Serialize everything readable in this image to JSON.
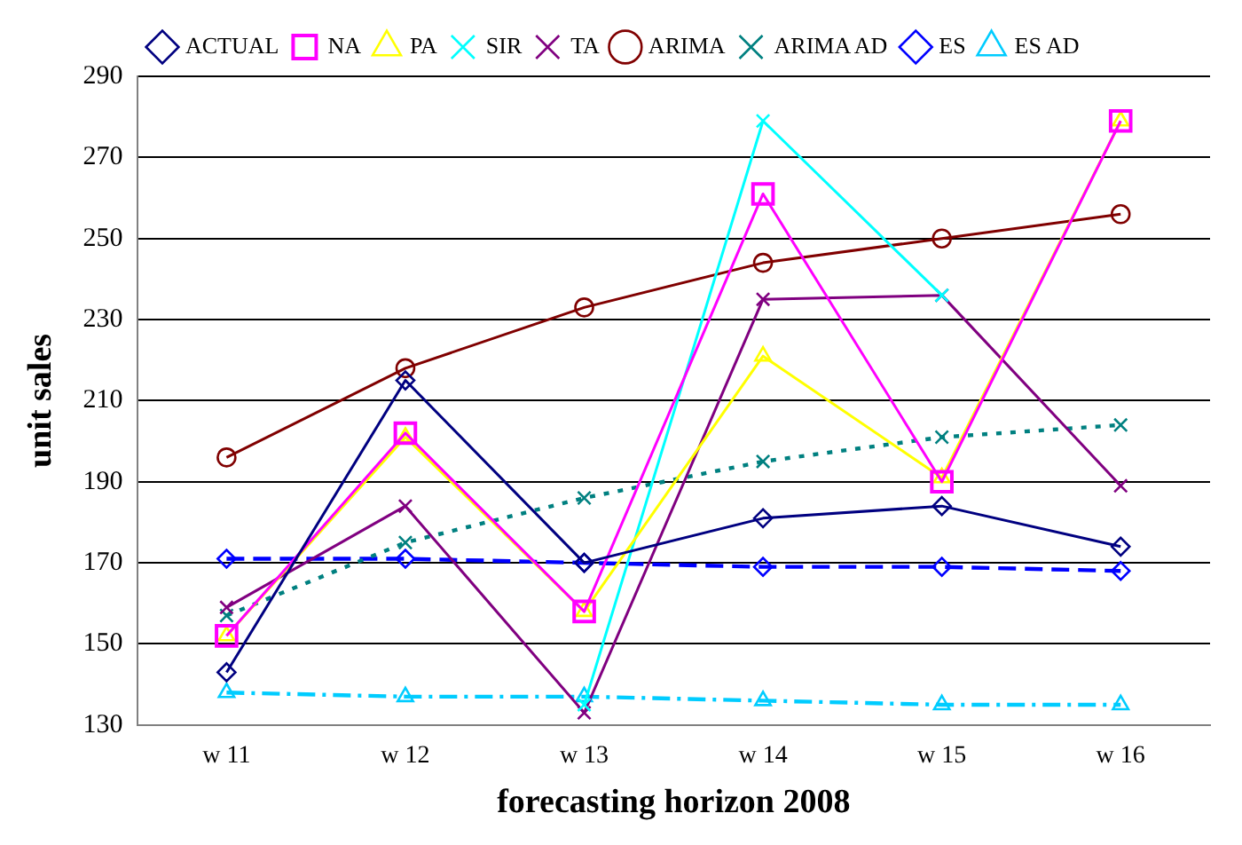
{
  "chart_data": {
    "type": "line",
    "xlabel": "forecasting horizon 2008",
    "ylabel": "unit sales",
    "categories": [
      "w 11",
      "w 12",
      "w 13",
      "w 14",
      "w 15",
      "w 16"
    ],
    "ylim": [
      130,
      290
    ],
    "yticks": [
      130,
      150,
      170,
      190,
      210,
      230,
      250,
      270,
      290
    ],
    "grid": "y",
    "legend": "top",
    "series": [
      {
        "name": "ACTUAL",
        "color": "#000080",
        "marker": "diamond",
        "line_style": "solid",
        "values": [
          143,
          215,
          170,
          181,
          184,
          174
        ]
      },
      {
        "name": "NA",
        "color": "#ff00ff",
        "marker": "square",
        "line_style": "solid",
        "values": [
          152,
          202,
          158,
          261,
          190,
          279
        ]
      },
      {
        "name": "PA",
        "color": "#ffff00",
        "marker": "triangle",
        "line_style": "solid",
        "values": [
          152,
          201,
          158,
          221,
          191,
          279
        ]
      },
      {
        "name": "SIR",
        "color": "#00ffff",
        "marker": "cross",
        "line_style": "solid",
        "values": [
          null,
          null,
          135,
          279,
          236,
          null
        ]
      },
      {
        "name": "TA",
        "color": "#800080",
        "marker": "cross",
        "line_style": "solid",
        "values": [
          159,
          184,
          133,
          235,
          236,
          189
        ]
      },
      {
        "name": "ARIMA",
        "color": "#800000",
        "marker": "circle",
        "line_style": "solid",
        "values": [
          196,
          218,
          233,
          244,
          250,
          256
        ]
      },
      {
        "name": "ARIMA AD",
        "color": "#008080",
        "marker": "cross",
        "line_style": "dotted",
        "values": [
          157,
          175,
          186,
          195,
          201,
          204
        ]
      },
      {
        "name": "ES",
        "color": "#0000ff",
        "marker": "diamond",
        "line_style": "dashed",
        "values": [
          171,
          171,
          170,
          169,
          169,
          168
        ]
      },
      {
        "name": "ES AD",
        "color": "#00ccff",
        "marker": "triangle",
        "line_style": "dashdot",
        "values": [
          138,
          137,
          137,
          136,
          135,
          135
        ]
      }
    ]
  }
}
